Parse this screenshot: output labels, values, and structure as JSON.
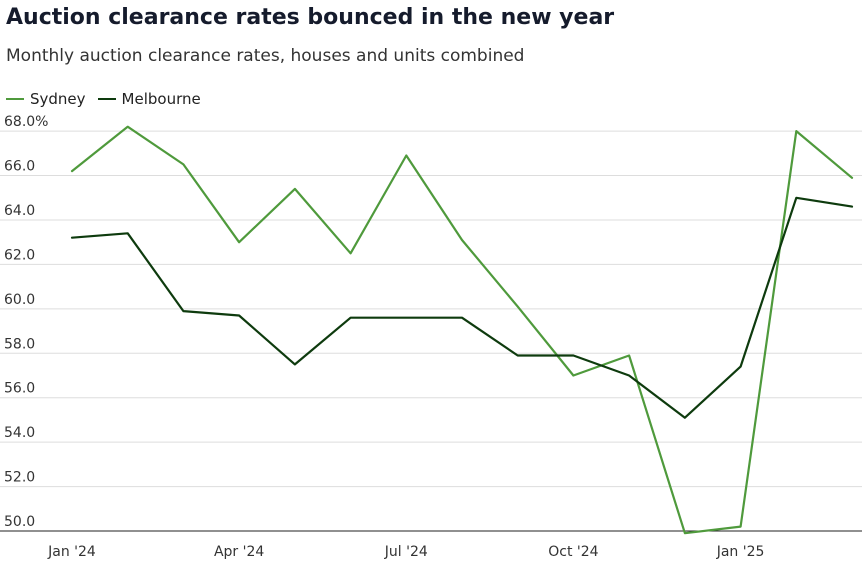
{
  "chart_data": {
    "type": "line",
    "title": "Auction clearance rates bounced in the new year",
    "subtitle": "Monthly auction clearance rates, houses and units combined",
    "x": [
      "Jan 2024",
      "Feb 2024",
      "Mar 2024",
      "Apr 2024",
      "May 2024",
      "Jun 2024",
      "Jul 2024",
      "Aug 2024",
      "Sep 2024",
      "Oct 2024",
      "Nov 2024",
      "Dec 2024",
      "Jan 2025",
      "Feb 2025",
      "Mar 2025"
    ],
    "x_tick_labels": [
      "Jan '24",
      "Apr '24",
      "Jul '24",
      "Oct '24",
      "Jan '25"
    ],
    "x_tick_indices": [
      0,
      3,
      6,
      9,
      12
    ],
    "y_tick_labels": [
      "50.0",
      "52.0",
      "54.0",
      "56.0",
      "58.0",
      "60.0",
      "62.0",
      "64.0",
      "66.0",
      "68.0%"
    ],
    "y_ticks": [
      50,
      52,
      54,
      56,
      58,
      60,
      62,
      64,
      66,
      68
    ],
    "ylim": [
      50,
      68.5
    ],
    "grid": true,
    "legend_position": "top-left",
    "series": [
      {
        "name": "Sydney",
        "color": "#4f9a3c",
        "values": [
          66.2,
          68.2,
          66.5,
          63.0,
          65.4,
          62.5,
          66.9,
          63.1,
          60.1,
          57.0,
          57.9,
          49.9,
          50.2,
          68.0,
          65.9
        ]
      },
      {
        "name": "Melbourne",
        "color": "#0e3b0e",
        "values": [
          63.2,
          63.4,
          59.9,
          59.7,
          57.5,
          59.6,
          59.6,
          59.6,
          57.9,
          57.9,
          57.0,
          55.1,
          57.4,
          65.0,
          64.6
        ]
      }
    ],
    "grid_color": "#dddddd",
    "axis_color": "#222222"
  }
}
